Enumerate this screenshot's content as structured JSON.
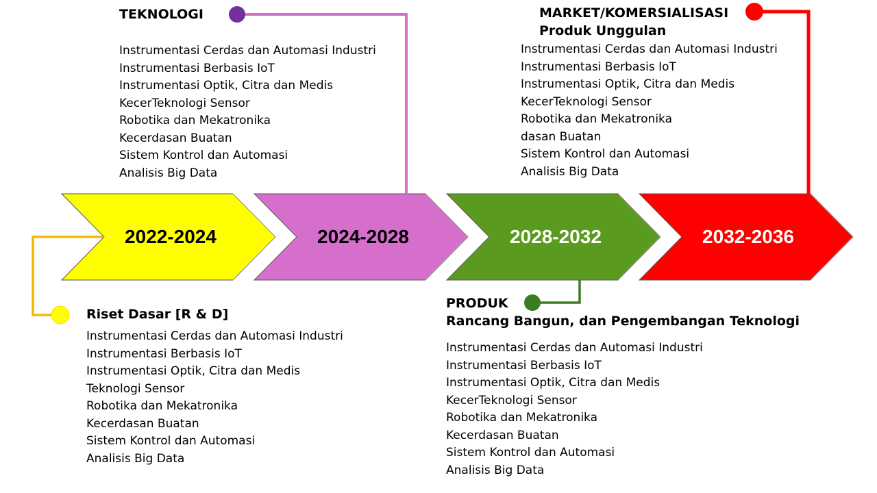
{
  "colors": {
    "yellow": "#ffff00",
    "violet": "#d66fcc",
    "green": "#5a9a1e",
    "red": "#ff0000",
    "yellow_connector": "#f5b800",
    "violet_dot": "#7030a0",
    "green_dot": "#3a7d22"
  },
  "timeline": {
    "phases": [
      {
        "label": "2022-2024",
        "color": "#ffff00",
        "text_color": "#000000"
      },
      {
        "label": "2024-2028",
        "color": "#d66fcc",
        "text_color": "#000000"
      },
      {
        "label": "2028-2032",
        "color": "#5a9a1e",
        "text_color": "#ffffff"
      },
      {
        "label": "2032-2036",
        "color": "#ff0000",
        "text_color": "#ffffff"
      }
    ]
  },
  "blocks": {
    "riset": {
      "title": "Riset Dasar [R & D]",
      "items": [
        "Instrumentasi Cerdas dan Automasi Industri",
        "Instrumentasi Berbasis IoT",
        "Instrumentasi Optik, Citra dan Medis",
        "Teknologi Sensor",
        "Robotika dan Mekatronika",
        "Kecerdasan Buatan",
        "Sistem Kontrol dan Automasi",
        "Analisis Big Data"
      ]
    },
    "teknologi": {
      "title": "TEKNOLOGI",
      "items": [
        "Instrumentasi Cerdas dan Automasi Industri",
        "Instrumentasi Berbasis IoT",
        "Instrumentasi Optik, Citra dan Medis",
        "KecerTeknologi Sensor",
        "Robotika dan Mekatronika",
        "Kecerdasan Buatan",
        "Sistem Kontrol dan Automasi",
        "Analisis Big Data"
      ]
    },
    "produk": {
      "title": "PRODUK",
      "subtitle": "Rancang Bangun, dan Pengembangan Teknologi",
      "items": [
        "Instrumentasi Cerdas dan Automasi Industri",
        "Instrumentasi Berbasis IoT",
        "Instrumentasi Optik, Citra dan Medis",
        "KecerTeknologi Sensor",
        "Robotika dan Mekatronika",
        "Kecerdasan Buatan",
        "Sistem Kontrol dan Automasi",
        "Analisis Big Data"
      ]
    },
    "market": {
      "title": "MARKET/KOMERSIALISASI",
      "subtitle": "Produk Unggulan",
      "items": [
        "Instrumentasi Cerdas dan Automasi Industri",
        "Instrumentasi Berbasis IoT",
        "Instrumentasi Optik, Citra dan Medis",
        "KecerTeknologi Sensor",
        "Robotika dan Mekatronika",
        "dasan Buatan",
        "Sistem Kontrol dan Automasi",
        "Analisis Big Data"
      ]
    }
  }
}
